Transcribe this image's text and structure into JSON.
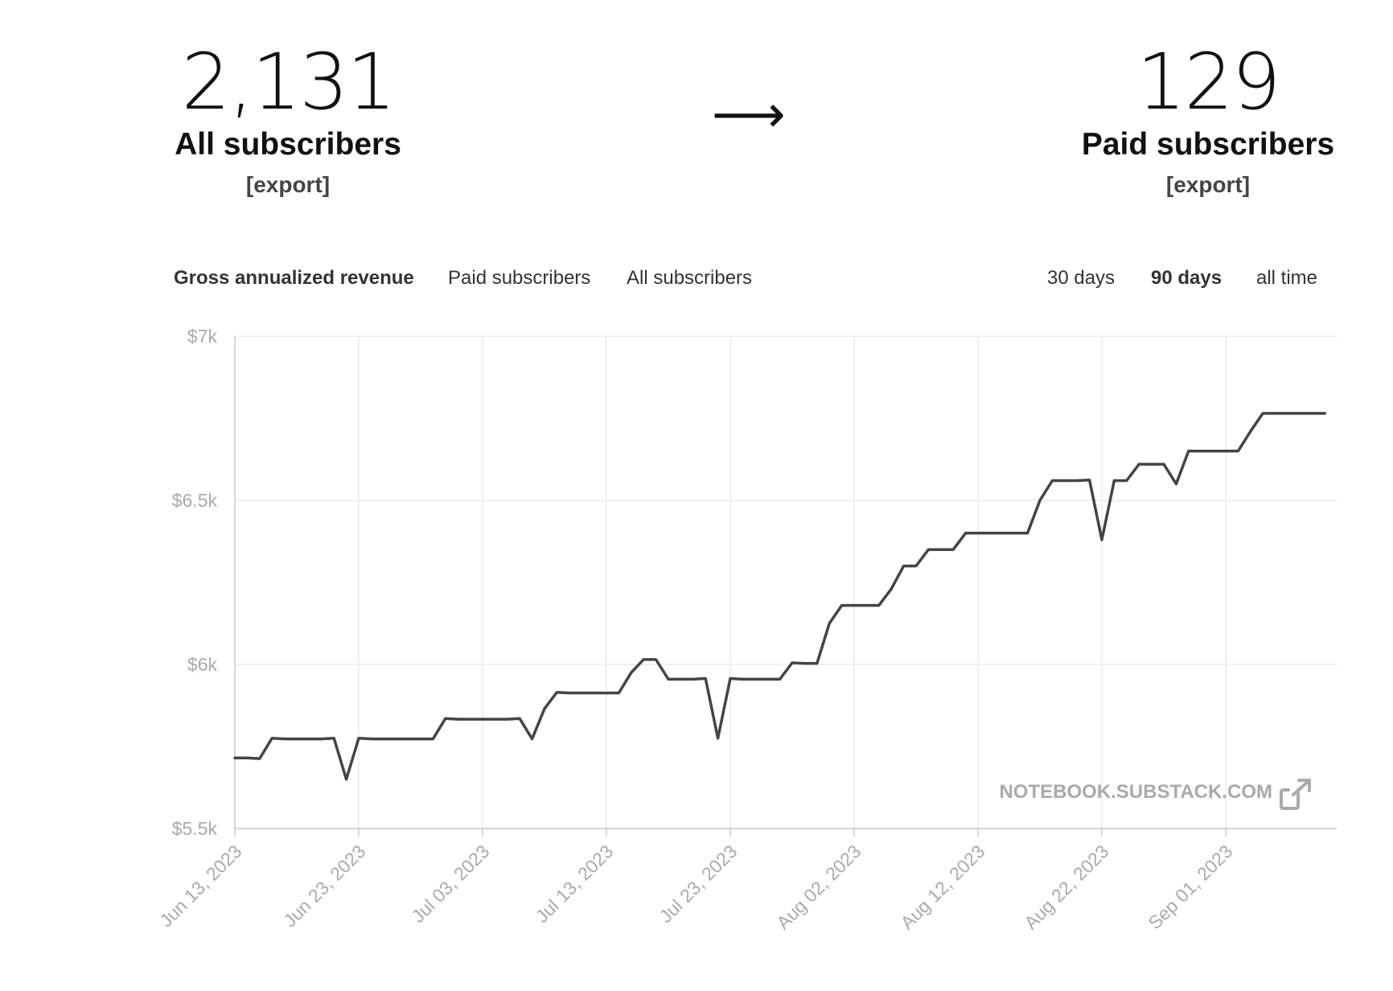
{
  "stats": {
    "all": {
      "value": "2,131",
      "label": "All subscribers",
      "export": "[export]"
    },
    "arrow": "⟶",
    "paid": {
      "value": "129",
      "label": "Paid subscribers",
      "export": "[export]"
    }
  },
  "metric_tabs": [
    {
      "label": "Gross annualized revenue",
      "active": true
    },
    {
      "label": "Paid subscribers",
      "active": false
    },
    {
      "label": "All subscribers",
      "active": false
    }
  ],
  "range_tabs": [
    {
      "label": "30 days",
      "active": false
    },
    {
      "label": "90 days",
      "active": true
    },
    {
      "label": "all time",
      "active": false
    }
  ],
  "watermark": {
    "text": "NOTEBOOK.SUBSTACK.COM",
    "icon": "external-link-icon"
  },
  "chart_data": {
    "type": "line",
    "title": "",
    "xlabel": "",
    "ylabel": "",
    "ylim": [
      5500,
      7000
    ],
    "y_ticks": [
      "$5.5k",
      "$6k",
      "$6.5k",
      "$7k"
    ],
    "y_tick_values": [
      5500,
      6000,
      6500,
      7000
    ],
    "x_ticks": [
      "Jun 13, 2023",
      "Jun 23, 2023",
      "Jul 03, 2023",
      "Jul 13, 2023",
      "Jul 23, 2023",
      "Aug 02, 2023",
      "Aug 12, 2023",
      "Aug 22, 2023",
      "Sep 01, 2023"
    ],
    "x_tick_dates": [
      "2023-06-13",
      "2023-06-23",
      "2023-07-03",
      "2023-07-13",
      "2023-07-23",
      "2023-08-02",
      "2023-08-12",
      "2023-08-22",
      "2023-09-01"
    ],
    "x_range": [
      "2023-06-13",
      "2023-09-09"
    ],
    "grid": true,
    "line_color": "#444444",
    "series": [
      {
        "points": [
          [
            "2023-06-13",
            5715
          ],
          [
            "2023-06-14",
            5715
          ],
          [
            "2023-06-15",
            5713
          ],
          [
            "2023-06-16",
            5775
          ],
          [
            "2023-06-17",
            5773
          ],
          [
            "2023-06-18",
            5773
          ],
          [
            "2023-06-19",
            5773
          ],
          [
            "2023-06-20",
            5773
          ],
          [
            "2023-06-21",
            5775
          ],
          [
            "2023-06-22",
            5650
          ],
          [
            "2023-06-23",
            5775
          ],
          [
            "2023-06-24",
            5773
          ],
          [
            "2023-06-25",
            5773
          ],
          [
            "2023-06-26",
            5773
          ],
          [
            "2023-06-27",
            5773
          ],
          [
            "2023-06-28",
            5773
          ],
          [
            "2023-06-29",
            5773
          ],
          [
            "2023-06-30",
            5835
          ],
          [
            "2023-07-01",
            5833
          ],
          [
            "2023-07-02",
            5833
          ],
          [
            "2023-07-03",
            5833
          ],
          [
            "2023-07-04",
            5833
          ],
          [
            "2023-07-05",
            5833
          ],
          [
            "2023-07-06",
            5835
          ],
          [
            "2023-07-07",
            5773
          ],
          [
            "2023-07-08",
            5865
          ],
          [
            "2023-07-09",
            5915
          ],
          [
            "2023-07-10",
            5913
          ],
          [
            "2023-07-11",
            5913
          ],
          [
            "2023-07-12",
            5913
          ],
          [
            "2023-07-13",
            5913
          ],
          [
            "2023-07-14",
            5913
          ],
          [
            "2023-07-15",
            5975
          ],
          [
            "2023-07-16",
            6015
          ],
          [
            "2023-07-17",
            6015
          ],
          [
            "2023-07-18",
            5955
          ],
          [
            "2023-07-19",
            5955
          ],
          [
            "2023-07-20",
            5955
          ],
          [
            "2023-07-21",
            5957
          ],
          [
            "2023-07-22",
            5775
          ],
          [
            "2023-07-23",
            5957
          ],
          [
            "2023-07-24",
            5955
          ],
          [
            "2023-07-25",
            5955
          ],
          [
            "2023-07-26",
            5955
          ],
          [
            "2023-07-27",
            5955
          ],
          [
            "2023-07-28",
            6005
          ],
          [
            "2023-07-29",
            6003
          ],
          [
            "2023-07-30",
            6003
          ],
          [
            "2023-07-31",
            6125
          ],
          [
            "2023-08-01",
            6180
          ],
          [
            "2023-08-02",
            6180
          ],
          [
            "2023-08-03",
            6180
          ],
          [
            "2023-08-04",
            6180
          ],
          [
            "2023-08-05",
            6230
          ],
          [
            "2023-08-06",
            6300
          ],
          [
            "2023-08-07",
            6300
          ],
          [
            "2023-08-08",
            6350
          ],
          [
            "2023-08-09",
            6350
          ],
          [
            "2023-08-10",
            6350
          ],
          [
            "2023-08-11",
            6400
          ],
          [
            "2023-08-12",
            6400
          ],
          [
            "2023-08-13",
            6400
          ],
          [
            "2023-08-14",
            6400
          ],
          [
            "2023-08-15",
            6400
          ],
          [
            "2023-08-16",
            6400
          ],
          [
            "2023-08-17",
            6500
          ],
          [
            "2023-08-18",
            6560
          ],
          [
            "2023-08-19",
            6560
          ],
          [
            "2023-08-20",
            6560
          ],
          [
            "2023-08-21",
            6562
          ],
          [
            "2023-08-22",
            6380
          ],
          [
            "2023-08-23",
            6560
          ],
          [
            "2023-08-24",
            6560
          ],
          [
            "2023-08-25",
            6610
          ],
          [
            "2023-08-26",
            6610
          ],
          [
            "2023-08-27",
            6610
          ],
          [
            "2023-08-28",
            6550
          ],
          [
            "2023-08-29",
            6650
          ],
          [
            "2023-08-30",
            6650
          ],
          [
            "2023-08-31",
            6650
          ],
          [
            "2023-09-01",
            6650
          ],
          [
            "2023-09-02",
            6650
          ],
          [
            "2023-09-03",
            6710
          ],
          [
            "2023-09-04",
            6765
          ],
          [
            "2023-09-05",
            6765
          ],
          [
            "2023-09-06",
            6765
          ],
          [
            "2023-09-07",
            6765
          ],
          [
            "2023-09-08",
            6765
          ],
          [
            "2023-09-09",
            6765
          ]
        ]
      }
    ]
  }
}
